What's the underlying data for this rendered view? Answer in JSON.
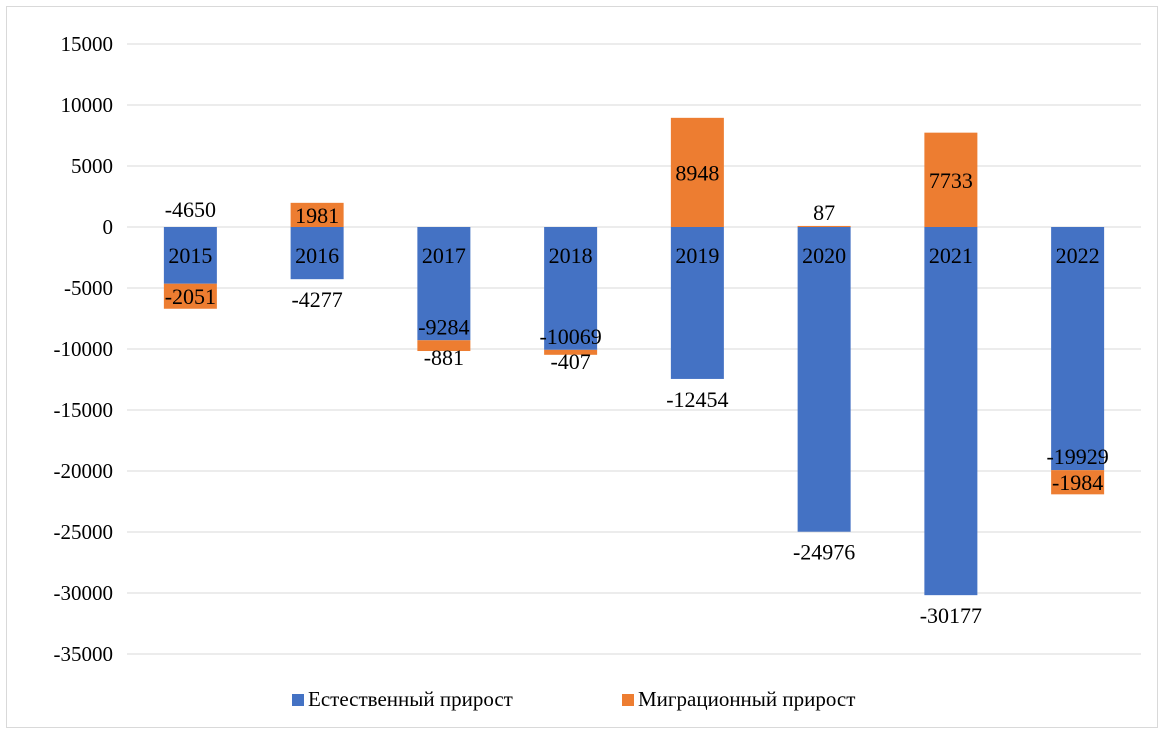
{
  "chart_data": {
    "type": "bar",
    "stacked": true,
    "categories": [
      "2015",
      "2016",
      "2017",
      "2018",
      "2019",
      "2020",
      "2021",
      "2022"
    ],
    "series": [
      {
        "name": "Естественный прирост",
        "color": "#4472c4",
        "values": [
          -4650,
          -4277,
          -9284,
          -10069,
          -12454,
          -24976,
          -30177,
          -19929
        ]
      },
      {
        "name": "Миграционный прирост",
        "color": "#ed7d31",
        "values": [
          -2051,
          1981,
          -881,
          -407,
          8948,
          87,
          7733,
          -1984
        ]
      }
    ],
    "yticks": [
      15000,
      10000,
      5000,
      0,
      -5000,
      -10000,
      -15000,
      -20000,
      -25000,
      -30000,
      -35000
    ],
    "ylim": [
      -35000,
      15000
    ],
    "grid": true,
    "legend": "bottom",
    "category_labels_position": "at-zero-axis"
  }
}
